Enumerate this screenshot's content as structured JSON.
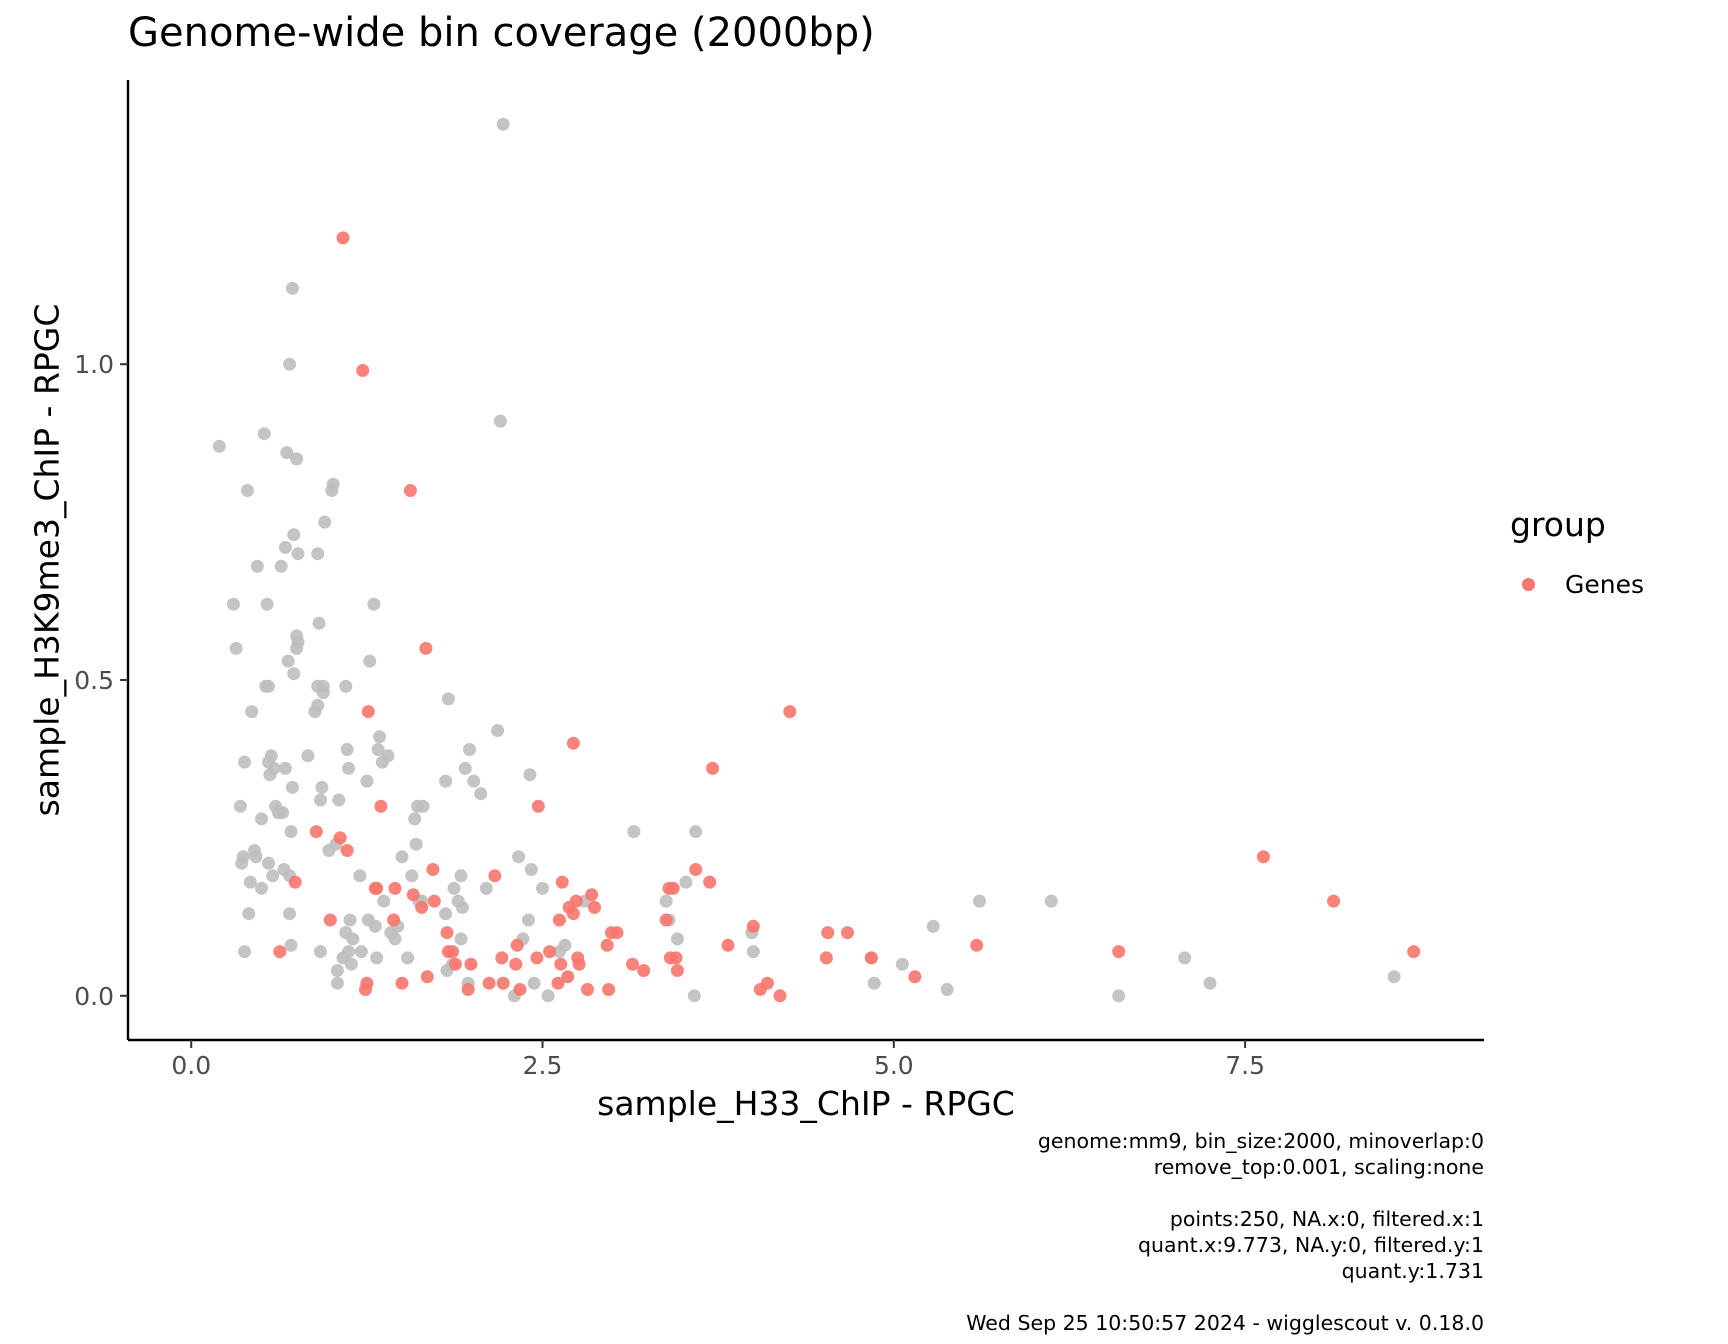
{
  "chart_data": {
    "type": "scatter",
    "title": "Genome-wide bin coverage (2000bp)",
    "xlabel": "sample_H33_ChIP - RPGC",
    "ylabel": "sample_H3K9me3_ChIP - RPGC",
    "xlim": [
      -0.45,
      9.2
    ],
    "ylim": [
      -0.07,
      1.45
    ],
    "x_ticks": [
      0.0,
      2.5,
      5.0,
      7.5
    ],
    "x_tick_labels": [
      "0.0",
      "2.5",
      "5.0",
      "7.5"
    ],
    "y_ticks": [
      0.0,
      0.5,
      1.0
    ],
    "y_tick_labels": [
      "0.0",
      "0.5",
      "1.0"
    ],
    "grid": false,
    "legend": {
      "title": "group",
      "position": "right",
      "items": [
        {
          "label": "Genes",
          "color": "#f8766d"
        }
      ]
    },
    "colors": {
      "genes": "#f8766d",
      "background": "#bebebe"
    },
    "series": [
      {
        "group": "background",
        "color": "#bebebe",
        "points": [
          [
            0.2,
            0.87
          ],
          [
            0.3,
            0.62
          ],
          [
            0.32,
            0.55
          ],
          [
            0.35,
            0.3
          ],
          [
            0.36,
            0.21
          ],
          [
            0.37,
            0.22
          ],
          [
            0.38,
            0.07
          ],
          [
            0.38,
            0.37
          ],
          [
            0.4,
            0.8
          ],
          [
            0.41,
            0.13
          ],
          [
            0.42,
            0.18
          ],
          [
            0.43,
            0.45
          ],
          [
            0.45,
            0.23
          ],
          [
            0.46,
            0.22
          ],
          [
            0.47,
            0.68
          ],
          [
            0.5,
            0.28
          ],
          [
            0.5,
            0.17
          ],
          [
            0.52,
            0.89
          ],
          [
            0.53,
            0.49
          ],
          [
            0.54,
            0.62
          ],
          [
            0.55,
            0.49
          ],
          [
            0.55,
            0.37
          ],
          [
            0.55,
            0.21
          ],
          [
            0.56,
            0.35
          ],
          [
            0.57,
            0.38
          ],
          [
            0.58,
            0.19
          ],
          [
            0.59,
            0.36
          ],
          [
            0.6,
            0.3
          ],
          [
            0.62,
            0.29
          ],
          [
            0.64,
            0.68
          ],
          [
            0.65,
            0.29
          ],
          [
            0.66,
            0.2
          ],
          [
            0.67,
            0.36
          ],
          [
            0.67,
            0.71
          ],
          [
            0.68,
            0.86
          ],
          [
            0.69,
            0.53
          ],
          [
            0.7,
            1.0
          ],
          [
            0.7,
            0.19
          ],
          [
            0.7,
            0.13
          ],
          [
            0.71,
            0.26
          ],
          [
            0.71,
            0.08
          ],
          [
            0.72,
            0.33
          ],
          [
            0.72,
            1.12
          ],
          [
            0.73,
            0.73
          ],
          [
            0.73,
            0.51
          ],
          [
            0.75,
            0.85
          ],
          [
            0.75,
            0.57
          ],
          [
            0.75,
            0.55
          ],
          [
            0.76,
            0.56
          ],
          [
            0.76,
            0.7
          ],
          [
            0.83,
            0.38
          ],
          [
            0.88,
            0.45
          ],
          [
            0.9,
            0.49
          ],
          [
            0.9,
            0.7
          ],
          [
            0.9,
            0.46
          ],
          [
            0.91,
            0.59
          ],
          [
            0.92,
            0.31
          ],
          [
            0.92,
            0.07
          ],
          [
            0.93,
            0.33
          ],
          [
            0.94,
            0.48
          ],
          [
            0.94,
            0.49
          ],
          [
            0.95,
            0.75
          ],
          [
            0.98,
            0.23
          ],
          [
            1.0,
            0.8
          ],
          [
            1.01,
            0.81
          ],
          [
            1.03,
            0.24
          ],
          [
            1.04,
            0.04
          ],
          [
            1.04,
            0.02
          ],
          [
            1.05,
            0.31
          ],
          [
            1.08,
            0.06
          ],
          [
            1.1,
            0.49
          ],
          [
            1.1,
            0.1
          ],
          [
            1.11,
            0.39
          ],
          [
            1.12,
            0.36
          ],
          [
            1.12,
            0.07
          ],
          [
            1.13,
            0.12
          ],
          [
            1.14,
            0.05
          ],
          [
            1.15,
            0.09
          ],
          [
            1.2,
            0.19
          ],
          [
            1.21,
            0.07
          ],
          [
            1.25,
            0.34
          ],
          [
            1.26,
            0.12
          ],
          [
            1.27,
            0.53
          ],
          [
            1.3,
            0.62
          ],
          [
            1.31,
            0.11
          ],
          [
            1.32,
            0.06
          ],
          [
            1.33,
            0.39
          ],
          [
            1.34,
            0.41
          ],
          [
            1.36,
            0.37
          ],
          [
            1.37,
            0.15
          ],
          [
            1.4,
            0.38
          ],
          [
            1.42,
            0.1
          ],
          [
            1.45,
            0.09
          ],
          [
            1.47,
            0.11
          ],
          [
            1.5,
            0.22
          ],
          [
            1.54,
            0.06
          ],
          [
            1.57,
            0.19
          ],
          [
            1.59,
            0.28
          ],
          [
            1.6,
            0.24
          ],
          [
            1.61,
            0.3
          ],
          [
            1.62,
            0.15
          ],
          [
            1.64,
            0.15
          ],
          [
            1.65,
            0.3
          ],
          [
            1.81,
            0.34
          ],
          [
            1.81,
            0.13
          ],
          [
            1.82,
            0.04
          ],
          [
            1.83,
            0.47
          ],
          [
            1.86,
            0.05
          ],
          [
            1.87,
            0.17
          ],
          [
            1.9,
            0.15
          ],
          [
            1.92,
            0.19
          ],
          [
            1.92,
            0.09
          ],
          [
            1.93,
            0.14
          ],
          [
            1.95,
            0.36
          ],
          [
            1.97,
            0.02
          ],
          [
            1.98,
            0.39
          ],
          [
            2.01,
            0.34
          ],
          [
            2.06,
            0.32
          ],
          [
            2.1,
            0.17
          ],
          [
            2.18,
            0.42
          ],
          [
            2.2,
            0.91
          ],
          [
            2.22,
            1.38
          ],
          [
            2.3,
            0.0
          ],
          [
            2.33,
            0.22
          ],
          [
            2.36,
            0.09
          ],
          [
            2.4,
            0.12
          ],
          [
            2.41,
            0.35
          ],
          [
            2.42,
            0.2
          ],
          [
            2.44,
            0.02
          ],
          [
            2.5,
            0.17
          ],
          [
            2.54,
            0.0
          ],
          [
            2.62,
            0.07
          ],
          [
            2.66,
            0.08
          ],
          [
            2.8,
            0.15
          ],
          [
            3.15,
            0.26
          ],
          [
            3.38,
            0.15
          ],
          [
            3.4,
            0.12
          ],
          [
            3.46,
            0.09
          ],
          [
            3.52,
            0.18
          ],
          [
            3.58,
            0.0
          ],
          [
            3.59,
            0.26
          ],
          [
            3.99,
            0.1
          ],
          [
            4.0,
            0.07
          ],
          [
            4.84,
            0.06
          ],
          [
            4.86,
            0.02
          ],
          [
            5.06,
            0.05
          ],
          [
            5.28,
            0.11
          ],
          [
            5.38,
            0.01
          ],
          [
            5.61,
            0.15
          ],
          [
            6.12,
            0.15
          ],
          [
            6.6,
            0.0
          ],
          [
            7.07,
            0.06
          ],
          [
            7.25,
            0.02
          ],
          [
            8.56,
            0.03
          ]
        ]
      },
      {
        "name": "Genes",
        "color": "#f8766d",
        "points": [
          [
            0.63,
            0.07
          ],
          [
            0.74,
            0.18
          ],
          [
            0.89,
            0.26
          ],
          [
            0.99,
            0.12
          ],
          [
            1.06,
            0.25
          ],
          [
            1.08,
            1.2
          ],
          [
            1.11,
            0.23
          ],
          [
            1.22,
            0.99
          ],
          [
            1.24,
            0.01
          ],
          [
            1.25,
            0.02
          ],
          [
            1.26,
            0.45
          ],
          [
            1.31,
            0.17
          ],
          [
            1.32,
            0.17
          ],
          [
            1.35,
            0.3
          ],
          [
            1.44,
            0.12
          ],
          [
            1.45,
            0.17
          ],
          [
            1.5,
            0.02
          ],
          [
            1.56,
            0.8
          ],
          [
            1.58,
            0.16
          ],
          [
            1.64,
            0.14
          ],
          [
            1.67,
            0.55
          ],
          [
            1.68,
            0.03
          ],
          [
            1.72,
            0.2
          ],
          [
            1.73,
            0.15
          ],
          [
            1.82,
            0.1
          ],
          [
            1.83,
            0.07
          ],
          [
            1.86,
            0.07
          ],
          [
            1.88,
            0.05
          ],
          [
            1.97,
            0.01
          ],
          [
            1.99,
            0.05
          ],
          [
            2.12,
            0.02
          ],
          [
            2.16,
            0.19
          ],
          [
            2.21,
            0.06
          ],
          [
            2.22,
            0.02
          ],
          [
            2.31,
            0.05
          ],
          [
            2.32,
            0.08
          ],
          [
            2.34,
            0.01
          ],
          [
            2.46,
            0.06
          ],
          [
            2.47,
            0.3
          ],
          [
            2.55,
            0.07
          ],
          [
            2.61,
            0.02
          ],
          [
            2.62,
            0.12
          ],
          [
            2.63,
            0.05
          ],
          [
            2.64,
            0.18
          ],
          [
            2.68,
            0.03
          ],
          [
            2.69,
            0.14
          ],
          [
            2.72,
            0.13
          ],
          [
            2.72,
            0.4
          ],
          [
            2.74,
            0.15
          ],
          [
            2.75,
            0.06
          ],
          [
            2.76,
            0.05
          ],
          [
            2.82,
            0.01
          ],
          [
            2.85,
            0.16
          ],
          [
            2.87,
            0.14
          ],
          [
            2.96,
            0.08
          ],
          [
            2.97,
            0.01
          ],
          [
            2.99,
            0.1
          ],
          [
            3.03,
            0.1
          ],
          [
            3.14,
            0.05
          ],
          [
            3.22,
            0.04
          ],
          [
            3.38,
            0.12
          ],
          [
            3.4,
            0.17
          ],
          [
            3.41,
            0.06
          ],
          [
            3.43,
            0.17
          ],
          [
            3.45,
            0.06
          ],
          [
            3.46,
            0.04
          ],
          [
            3.59,
            0.2
          ],
          [
            3.69,
            0.18
          ],
          [
            3.71,
            0.36
          ],
          [
            3.82,
            0.08
          ],
          [
            4.0,
            0.11
          ],
          [
            4.05,
            0.01
          ],
          [
            4.1,
            0.02
          ],
          [
            4.19,
            0.0
          ],
          [
            4.26,
            0.45
          ],
          [
            4.52,
            0.06
          ],
          [
            4.53,
            0.1
          ],
          [
            4.67,
            0.1
          ],
          [
            4.84,
            0.06
          ],
          [
            5.15,
            0.03
          ],
          [
            5.59,
            0.08
          ],
          [
            6.6,
            0.07
          ],
          [
            7.63,
            0.22
          ],
          [
            8.13,
            0.15
          ],
          [
            8.7,
            0.07
          ]
        ]
      }
    ]
  },
  "caption": {
    "lines": [
      "genome:mm9, bin_size:2000, minoverlap:0",
      "remove_top:0.001, scaling:none",
      "",
      "points:250, NA.x:0, filtered.x:1",
      "quant.x:9.773, NA.y:0, filtered.y:1",
      "quant.y:1.731",
      "",
      "Wed Sep 25 10:50:57 2024 - wigglescout v. 0.18.0"
    ]
  }
}
